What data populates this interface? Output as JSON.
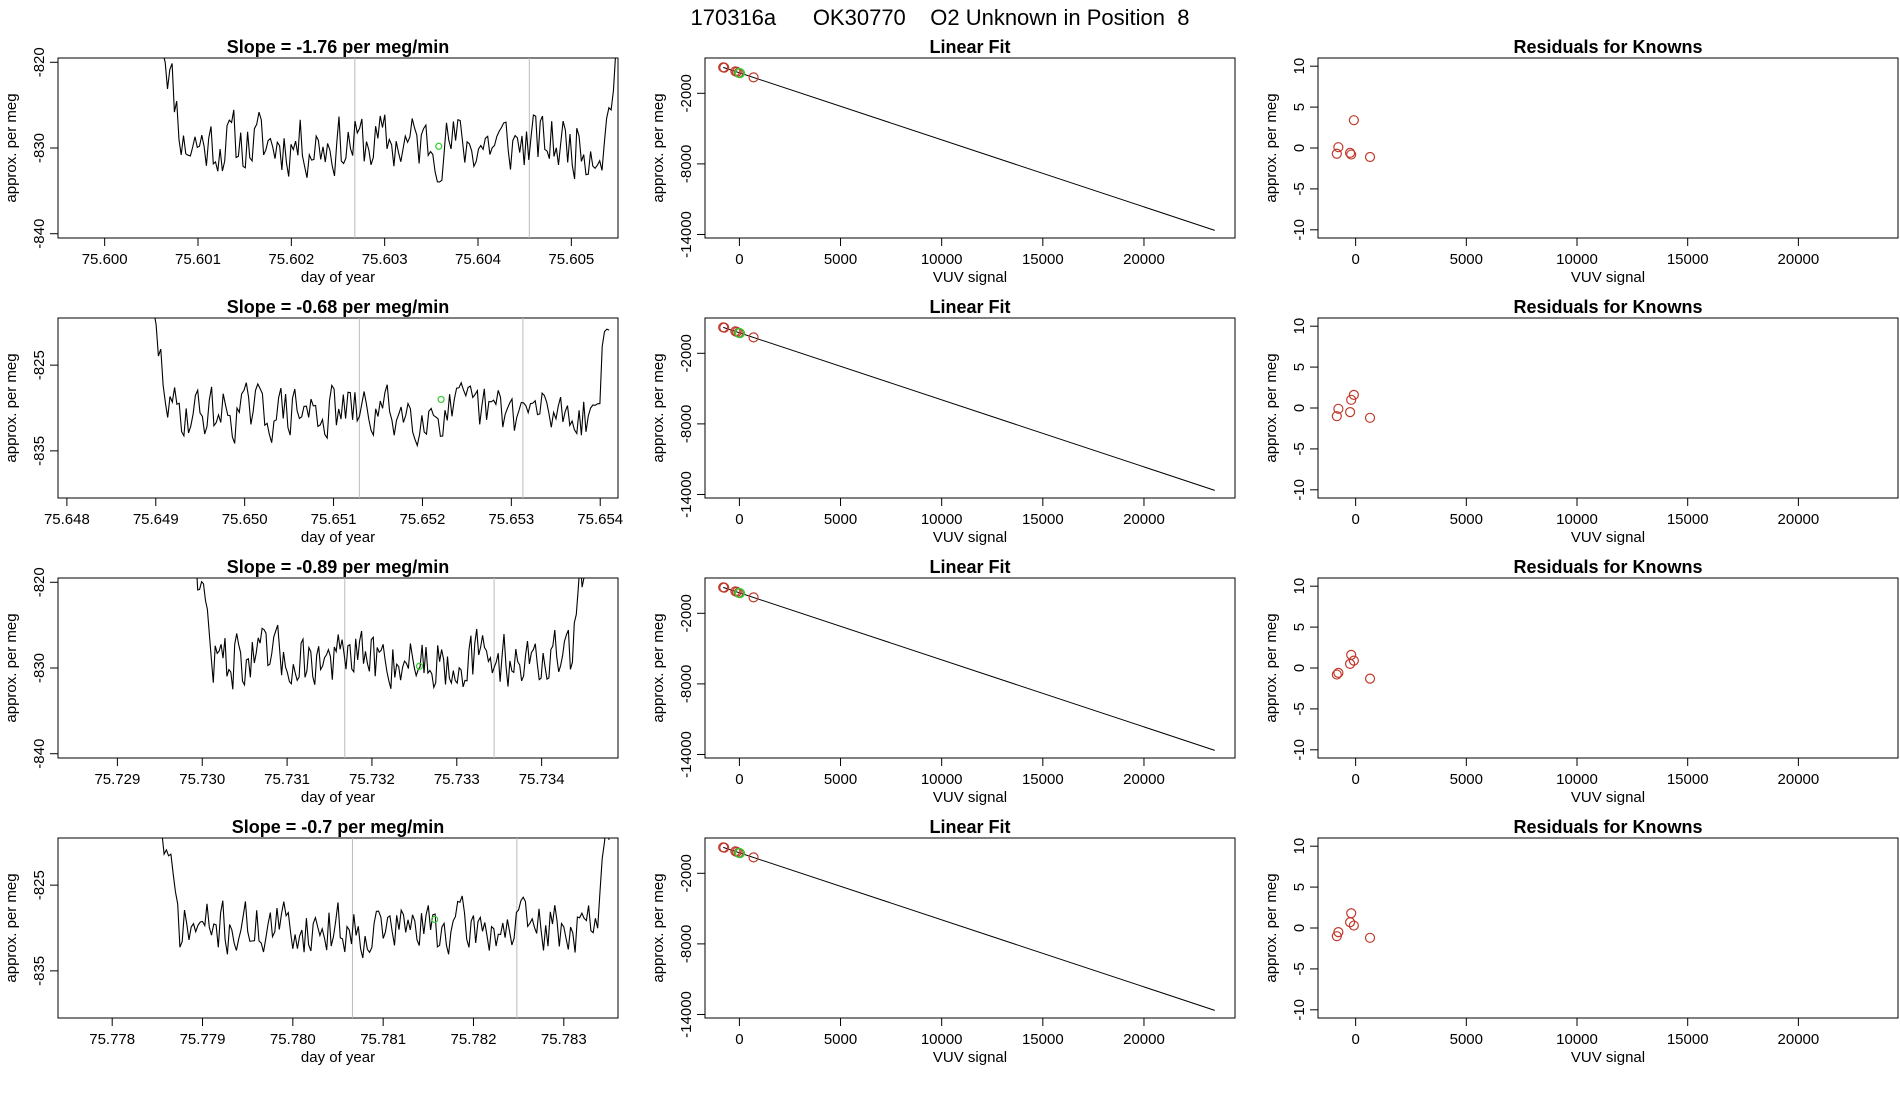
{
  "page_title": "170316a      OK30770    O2 Unknown in Position  8",
  "colors": {
    "trace": "#000000",
    "marker": "#33cc33",
    "vline": "#bbbbbb",
    "known": "#c0392b",
    "fit": "#000000"
  },
  "chart_data": [
    {
      "type": "line",
      "title": "Slope =  -1.76  per meg/min",
      "xlabel": "day of year",
      "ylabel": "approx. per meg",
      "xlim": [
        75.5995,
        75.6055
      ],
      "ylim": [
        -840.5,
        -819.5
      ],
      "xticks": [
        75.6,
        75.601,
        75.602,
        75.603,
        75.604,
        75.605
      ],
      "xtick_labels": [
        "75.600",
        "75.601",
        "75.602",
        "75.603",
        "75.604",
        "75.605"
      ],
      "yticks": [
        -840,
        -830,
        -820
      ],
      "ytick_labels": [
        "-840",
        "-830",
        "-820"
      ],
      "x_start": 75.6006,
      "x_end": 75.6055,
      "y_center": -829.5,
      "amplitude": 3.3,
      "seed": 11,
      "vlines": [
        75.60268,
        75.60455
      ],
      "marker": {
        "x": 75.60358,
        "y": -829.8
      }
    },
    {
      "type": "line",
      "title": "Slope =  -0.68  per meg/min",
      "xlabel": "day of year",
      "ylabel": "approx. per meg",
      "xlim": [
        75.6479,
        75.6542
      ],
      "ylim": [
        -840.5,
        -819.5
      ],
      "xticks": [
        75.648,
        75.649,
        75.65,
        75.651,
        75.652,
        75.653,
        75.654
      ],
      "xtick_labels": [
        "75.648",
        "75.649",
        "75.650",
        "75.651",
        "75.652",
        "75.653",
        "75.654"
      ],
      "yticks": [
        -835,
        -825
      ],
      "ytick_labels": [
        "-835",
        "-825"
      ],
      "x_start": 75.6489,
      "x_end": 75.6541,
      "y_center": -830.5,
      "amplitude": 2.8,
      "seed": 29,
      "vlines": [
        75.65129,
        75.65313
      ],
      "marker": {
        "x": 75.65221,
        "y": -829.0
      }
    },
    {
      "type": "line",
      "title": "Slope =  -0.89  per meg/min",
      "xlabel": "day of year",
      "ylabel": "approx. per meg",
      "xlim": [
        75.7283,
        75.7349
      ],
      "ylim": [
        -840.5,
        -819.5
      ],
      "xticks": [
        75.729,
        75.73,
        75.731,
        75.732,
        75.733,
        75.734
      ],
      "xtick_labels": [
        "75.729",
        "75.730",
        "75.731",
        "75.732",
        "75.733",
        "75.734"
      ],
      "yticks": [
        -840,
        -830,
        -820
      ],
      "ytick_labels": [
        "-840",
        "-830",
        "-820"
      ],
      "x_start": 75.7299,
      "x_end": 75.7345,
      "y_center": -829.0,
      "amplitude": 3.0,
      "seed": 47,
      "vlines": [
        75.73168,
        75.73344
      ],
      "marker": {
        "x": 75.73256,
        "y": -829.8
      }
    },
    {
      "type": "line",
      "title": "Slope =  -0.7  per meg/min",
      "xlabel": "day of year",
      "ylabel": "approx. per meg",
      "xlim": [
        75.7774,
        75.7836
      ],
      "ylim": [
        -840.5,
        -819.5
      ],
      "xticks": [
        75.778,
        75.779,
        75.78,
        75.781,
        75.782,
        75.783
      ],
      "xtick_labels": [
        "75.778",
        "75.779",
        "75.780",
        "75.781",
        "75.782",
        "75.783"
      ],
      "yticks": [
        -835,
        -825
      ],
      "ytick_labels": [
        "-835",
        "-825"
      ],
      "x_start": 75.7785,
      "x_end": 75.7835,
      "y_center": -830.0,
      "amplitude": 2.8,
      "seed": 71,
      "vlines": [
        75.78066,
        75.78248
      ],
      "marker": {
        "x": 75.78157,
        "y": -829.0
      }
    },
    {
      "type": "scatter",
      "title": "Linear Fit",
      "xlabel": "VUV signal",
      "ylabel": "approx. per meg",
      "xlim": [
        -1700,
        24500
      ],
      "ylim": [
        -14300,
        1000
      ],
      "xticks": [
        0,
        5000,
        10000,
        15000,
        20000
      ],
      "xtick_labels": [
        "0",
        "5000",
        "10000",
        "15000",
        "20000"
      ],
      "yticks": [
        -14000,
        -8000,
        -2000
      ],
      "ytick_labels": [
        "-14000",
        "-8000",
        "-2000"
      ],
      "fit_line": [
        [
          -800,
          200
        ],
        [
          23500,
          -13650
        ]
      ],
      "known_points": [
        [
          -800,
          200
        ],
        [
          -750,
          180
        ],
        [
          -200,
          -130
        ],
        [
          -130,
          -180
        ],
        [
          -40,
          -250
        ],
        [
          700,
          -650
        ]
      ],
      "unknown_points": [
        [
          0,
          -270
        ],
        [
          30,
          -290
        ]
      ]
    },
    {
      "type": "scatter",
      "title": "Linear Fit",
      "xlabel": "VUV signal",
      "ylabel": "approx. per meg",
      "xlim": [
        -1700,
        24500
      ],
      "ylim": [
        -14300,
        1000
      ],
      "xticks": [
        0,
        5000,
        10000,
        15000,
        20000
      ],
      "xtick_labels": [
        "0",
        "5000",
        "10000",
        "15000",
        "20000"
      ],
      "yticks": [
        -14000,
        -8000,
        -2000
      ],
      "ytick_labels": [
        "-14000",
        "-8000",
        "-2000"
      ],
      "fit_line": [
        [
          -800,
          200
        ],
        [
          23500,
          -13650
        ]
      ],
      "known_points": [
        [
          -800,
          200
        ],
        [
          -750,
          180
        ],
        [
          -200,
          -130
        ],
        [
          -130,
          -180
        ],
        [
          -40,
          -250
        ],
        [
          700,
          -650
        ]
      ],
      "unknown_points": [
        [
          0,
          -270
        ],
        [
          30,
          -290
        ]
      ]
    },
    {
      "type": "scatter",
      "title": "Linear Fit",
      "xlabel": "VUV signal",
      "ylabel": "approx. per meg",
      "xlim": [
        -1700,
        24500
      ],
      "ylim": [
        -14300,
        1000
      ],
      "xticks": [
        0,
        5000,
        10000,
        15000,
        20000
      ],
      "xtick_labels": [
        "0",
        "5000",
        "10000",
        "15000",
        "20000"
      ],
      "yticks": [
        -14000,
        -8000,
        -2000
      ],
      "ytick_labels": [
        "-14000",
        "-8000",
        "-2000"
      ],
      "fit_line": [
        [
          -800,
          200
        ],
        [
          23500,
          -13650
        ]
      ],
      "known_points": [
        [
          -800,
          200
        ],
        [
          -750,
          180
        ],
        [
          -200,
          -130
        ],
        [
          -130,
          -180
        ],
        [
          -40,
          -250
        ],
        [
          700,
          -650
        ]
      ],
      "unknown_points": [
        [
          0,
          -270
        ],
        [
          30,
          -290
        ]
      ]
    },
    {
      "type": "scatter",
      "title": "Linear Fit",
      "xlabel": "VUV signal",
      "ylabel": "approx. per meg",
      "xlim": [
        -1700,
        24500
      ],
      "ylim": [
        -14300,
        1000
      ],
      "xticks": [
        0,
        5000,
        10000,
        15000,
        20000
      ],
      "xtick_labels": [
        "0",
        "5000",
        "10000",
        "15000",
        "20000"
      ],
      "yticks": [
        -14000,
        -8000,
        -2000
      ],
      "ytick_labels": [
        "-14000",
        "-8000",
        "-2000"
      ],
      "fit_line": [
        [
          -800,
          200
        ],
        [
          23500,
          -13650
        ]
      ],
      "known_points": [
        [
          -800,
          200
        ],
        [
          -750,
          180
        ],
        [
          -200,
          -130
        ],
        [
          -130,
          -180
        ],
        [
          -40,
          -250
        ],
        [
          700,
          -650
        ]
      ],
      "unknown_points": [
        [
          0,
          -270
        ],
        [
          30,
          -290
        ]
      ]
    },
    {
      "type": "scatter",
      "title": "Residuals for Knowns",
      "xlabel": "VUV signal",
      "ylabel": "approx. per meg",
      "xlim": [
        -1700,
        24500
      ],
      "ylim": [
        -11,
        11
      ],
      "xticks": [
        0,
        5000,
        10000,
        15000,
        20000
      ],
      "xtick_labels": [
        "0",
        "5000",
        "10000",
        "15000",
        "20000"
      ],
      "yticks": [
        -10,
        -5,
        0,
        5,
        10
      ],
      "ytick_labels": [
        "-10",
        "-5",
        "0",
        "5",
        "10"
      ],
      "points": [
        [
          -850,
          -0.7
        ],
        [
          -780,
          0.1
        ],
        [
          -250,
          -0.6
        ],
        [
          -200,
          -0.8
        ],
        [
          -80,
          3.4
        ],
        [
          650,
          -1.1
        ]
      ]
    },
    {
      "type": "scatter",
      "title": "Residuals for Knowns",
      "xlabel": "VUV signal",
      "ylabel": "approx. per meg",
      "xlim": [
        -1700,
        24500
      ],
      "ylim": [
        -11,
        11
      ],
      "xticks": [
        0,
        5000,
        10000,
        15000,
        20000
      ],
      "xtick_labels": [
        "0",
        "5000",
        "10000",
        "15000",
        "20000"
      ],
      "yticks": [
        -10,
        -5,
        0,
        5,
        10
      ],
      "ytick_labels": [
        "-10",
        "-5",
        "0",
        "5",
        "10"
      ],
      "points": [
        [
          -850,
          -1.0
        ],
        [
          -780,
          -0.1
        ],
        [
          -250,
          -0.5
        ],
        [
          -200,
          1.0
        ],
        [
          -80,
          1.6
        ],
        [
          650,
          -1.2
        ]
      ]
    },
    {
      "type": "scatter",
      "title": "Residuals for Knowns",
      "xlabel": "VUV signal",
      "ylabel": "approx. per meg",
      "xlim": [
        -1700,
        24500
      ],
      "ylim": [
        -11,
        11
      ],
      "xticks": [
        0,
        5000,
        10000,
        15000,
        20000
      ],
      "xtick_labels": [
        "0",
        "5000",
        "10000",
        "15000",
        "20000"
      ],
      "yticks": [
        -10,
        -5,
        0,
        5,
        10
      ],
      "ytick_labels": [
        "-10",
        "-5",
        "0",
        "5",
        "10"
      ],
      "points": [
        [
          -850,
          -0.8
        ],
        [
          -780,
          -0.6
        ],
        [
          -250,
          0.5
        ],
        [
          -200,
          1.6
        ],
        [
          -80,
          0.9
        ],
        [
          650,
          -1.3
        ]
      ]
    },
    {
      "type": "scatter",
      "title": "Residuals for Knowns",
      "xlabel": "VUV signal",
      "ylabel": "approx. per meg",
      "xlim": [
        -1700,
        24500
      ],
      "ylim": [
        -11,
        11
      ],
      "xticks": [
        0,
        5000,
        10000,
        15000,
        20000
      ],
      "xtick_labels": [
        "0",
        "5000",
        "10000",
        "15000",
        "20000"
      ],
      "yticks": [
        -10,
        -5,
        0,
        5,
        10
      ],
      "ytick_labels": [
        "-10",
        "-5",
        "0",
        "5",
        "10"
      ],
      "points": [
        [
          -850,
          -1.0
        ],
        [
          -780,
          -0.5
        ],
        [
          -250,
          0.7
        ],
        [
          -200,
          1.8
        ],
        [
          -80,
          0.3
        ],
        [
          650,
          -1.2
        ]
      ]
    }
  ]
}
